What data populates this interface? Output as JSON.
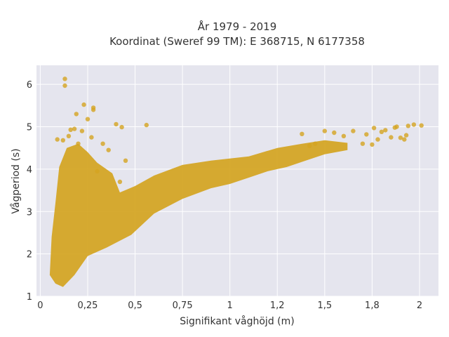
{
  "chart_data": {
    "type": "scatter",
    "title_line1": "År 1979 - 2019",
    "title_line2": "Koordinat (Sweref 99 TM): E 368715, N 6177358",
    "xlabel": "Signifikant våghöjd (m)",
    "ylabel": "Vågperiod (s)",
    "xlim": [
      -0.02,
      2.1
    ],
    "ylim": [
      1,
      6.45
    ],
    "x_ticks": [
      0,
      0.25,
      0.5,
      0.75,
      1,
      1.25,
      1.5,
      1.75,
      2
    ],
    "x_tick_labels": [
      "0",
      "0,25",
      "0,5",
      "0,75",
      "1",
      "1,2",
      "1,5",
      "1,8",
      "2"
    ],
    "y_ticks": [
      1,
      2,
      3,
      4,
      5,
      6
    ],
    "y_tick_labels": [
      "1",
      "2",
      "3",
      "4",
      "5",
      "6"
    ],
    "grid": true,
    "legend": false,
    "marker_color": "#d4a420",
    "background_color": "#e5e5ee",
    "series": [
      {
        "values": [
          [
            0.13,
            6.13
          ],
          [
            0.13,
            5.97
          ],
          [
            0.23,
            5.52
          ],
          [
            0.28,
            5.45
          ],
          [
            0.28,
            5.4
          ],
          [
            0.19,
            5.3
          ],
          [
            0.25,
            5.18
          ],
          [
            0.4,
            5.06
          ],
          [
            0.56,
            5.04
          ],
          [
            0.43,
            4.99
          ],
          [
            0.18,
            4.95
          ],
          [
            0.16,
            4.93
          ],
          [
            0.22,
            4.9
          ],
          [
            0.15,
            4.78
          ],
          [
            0.27,
            4.75
          ],
          [
            0.09,
            4.7
          ],
          [
            0.12,
            4.68
          ],
          [
            0.2,
            4.6
          ],
          [
            0.33,
            4.6
          ],
          [
            0.36,
            4.45
          ],
          [
            0.45,
            4.2
          ],
          [
            0.42,
            3.7
          ],
          [
            0.3,
            3.95
          ],
          [
            1.38,
            4.83
          ],
          [
            1.5,
            4.9
          ],
          [
            1.55,
            4.86
          ],
          [
            1.6,
            4.78
          ],
          [
            1.65,
            4.9
          ],
          [
            1.72,
            4.82
          ],
          [
            1.76,
            4.97
          ],
          [
            1.8,
            4.88
          ],
          [
            1.82,
            4.92
          ],
          [
            1.87,
            4.98
          ],
          [
            1.9,
            4.74
          ],
          [
            1.92,
            4.7
          ],
          [
            1.88,
            5.0
          ],
          [
            1.97,
            5.05
          ],
          [
            2.01,
            5.03
          ],
          [
            1.93,
            4.8
          ],
          [
            1.94,
            5.02
          ],
          [
            1.85,
            4.75
          ],
          [
            1.78,
            4.7
          ],
          [
            1.7,
            4.6
          ],
          [
            1.75,
            4.58
          ],
          [
            1.45,
            4.6
          ],
          [
            1.42,
            4.55
          ]
        ]
      }
    ]
  }
}
